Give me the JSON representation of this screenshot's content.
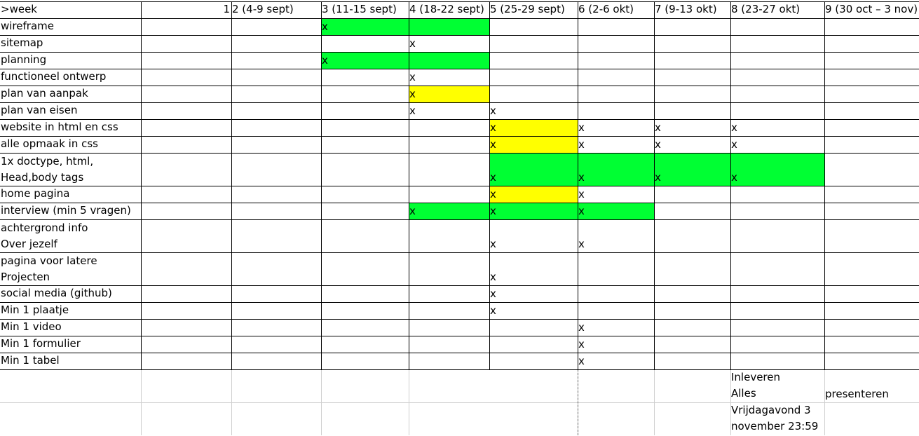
{
  "colors": {
    "green": "#00ff33",
    "yellow": "#ffff00"
  },
  "header": {
    "corner": ">week",
    "first_week_number": "1",
    "weeks": [
      "2 (4-9 sept)",
      "3 (11-15 sept)",
      "4 (18-22 sept)",
      "5 (25-29 sept)",
      "6 (2-6 okt)",
      "7 (9-13 okt)",
      "8 (23-27 okt)",
      "9 (30 oct – 3 nov)"
    ]
  },
  "tasks": [
    {
      "label": "wireframe",
      "marks": [
        "",
        "",
        "x",
        "",
        "",
        "",
        "",
        "",
        ""
      ],
      "fills": [
        "",
        "",
        "green",
        "green",
        "",
        "",
        "",
        "",
        ""
      ]
    },
    {
      "label": "sitemap",
      "marks": [
        "",
        "",
        "",
        "x",
        "",
        "",
        "",
        "",
        ""
      ],
      "fills": [
        "",
        "",
        "",
        "",
        "",
        "",
        "",
        "",
        ""
      ]
    },
    {
      "label": "planning",
      "marks": [
        "",
        "",
        "x",
        "",
        "",
        "",
        "",
        "",
        ""
      ],
      "fills": [
        "",
        "",
        "green",
        "green",
        "",
        "",
        "",
        "",
        ""
      ]
    },
    {
      "label": "functioneel ontwerp",
      "marks": [
        "",
        "",
        "",
        "x",
        "",
        "",
        "",
        "",
        ""
      ],
      "fills": [
        "",
        "",
        "",
        "",
        "",
        "",
        "",
        "",
        ""
      ]
    },
    {
      "label": "plan van aanpak",
      "marks": [
        "",
        "",
        "",
        "x",
        "",
        "",
        "",
        "",
        ""
      ],
      "fills": [
        "",
        "",
        "",
        "yellow",
        "",
        "",
        "",
        "",
        ""
      ]
    },
    {
      "label": "plan van eisen",
      "marks": [
        "",
        "",
        "",
        "x",
        "x",
        "",
        "",
        "",
        ""
      ],
      "fills": [
        "",
        "",
        "",
        "",
        "",
        "",
        "",
        "",
        ""
      ]
    },
    {
      "label": "website in html en css",
      "marks": [
        "",
        "",
        "",
        "",
        "x",
        "x",
        "x",
        "x",
        ""
      ],
      "fills": [
        "",
        "",
        "",
        "",
        "yellow",
        "",
        "",
        "",
        ""
      ]
    },
    {
      "label": "alle opmaak in css",
      "marks": [
        "",
        "",
        "",
        "",
        "x",
        "x",
        "x",
        "x",
        ""
      ],
      "fills": [
        "",
        "",
        "",
        "",
        "yellow",
        "",
        "",
        "",
        ""
      ]
    },
    {
      "label": "1x doctype, html,\nHead,body tags",
      "marks": [
        "",
        "",
        "",
        "",
        "x",
        "x",
        "x",
        "x",
        ""
      ],
      "fills": [
        "",
        "",
        "",
        "",
        "green",
        "green",
        "green",
        "green",
        ""
      ]
    },
    {
      "label": "home pagina",
      "marks": [
        "",
        "",
        "",
        "",
        "x",
        "x",
        "",
        "",
        ""
      ],
      "fills": [
        "",
        "",
        "",
        "",
        "yellow",
        "",
        "",
        "",
        ""
      ]
    },
    {
      "label": "interview (min 5 vragen)",
      "marks": [
        "",
        "",
        "",
        "x",
        "x",
        "x",
        "",
        "",
        ""
      ],
      "fills": [
        "",
        "",
        "",
        "green",
        "green",
        "green",
        "",
        "",
        ""
      ]
    },
    {
      "label": "achtergrond info\nOver jezelf",
      "marks": [
        "",
        "",
        "",
        "",
        "x",
        "x",
        "",
        "",
        ""
      ],
      "fills": [
        "",
        "",
        "",
        "",
        "",
        "",
        "",
        "",
        ""
      ]
    },
    {
      "label": "pagina voor latere\nProjecten",
      "marks": [
        "",
        "",
        "",
        "",
        "x",
        "",
        "",
        "",
        ""
      ],
      "fills": [
        "",
        "",
        "",
        "",
        "",
        "",
        "",
        "",
        ""
      ]
    },
    {
      "label": "social media (github)",
      "marks": [
        "",
        "",
        "",
        "",
        "x",
        "",
        "",
        "",
        ""
      ],
      "fills": [
        "",
        "",
        "",
        "",
        "",
        "",
        "",
        "",
        ""
      ]
    },
    {
      "label": "Min 1 plaatje",
      "marks": [
        "",
        "",
        "",
        "",
        "x",
        "",
        "",
        "",
        ""
      ],
      "fills": [
        "",
        "",
        "",
        "",
        "",
        "",
        "",
        "",
        ""
      ]
    },
    {
      "label": "Min 1 video",
      "marks": [
        "",
        "",
        "",
        "",
        "",
        "x",
        "",
        "",
        ""
      ],
      "fills": [
        "",
        "",
        "",
        "",
        "",
        "",
        "",
        "",
        ""
      ]
    },
    {
      "label": "Min 1 formulier",
      "marks": [
        "",
        "",
        "",
        "",
        "",
        "x",
        "",
        "",
        ""
      ],
      "fills": [
        "",
        "",
        "",
        "",
        "",
        "",
        "",
        "",
        ""
      ]
    },
    {
      "label": "Min 1 tabel",
      "marks": [
        "",
        "",
        "",
        "",
        "",
        "x",
        "",
        "",
        ""
      ],
      "fills": [
        "",
        "",
        "",
        "",
        "",
        "",
        "",
        "",
        ""
      ]
    }
  ],
  "notes": {
    "deadline_lines": [
      "Inleveren",
      "Alles",
      "Vrijdagavond 3",
      "november 23:59"
    ],
    "presentation": "presenteren"
  }
}
